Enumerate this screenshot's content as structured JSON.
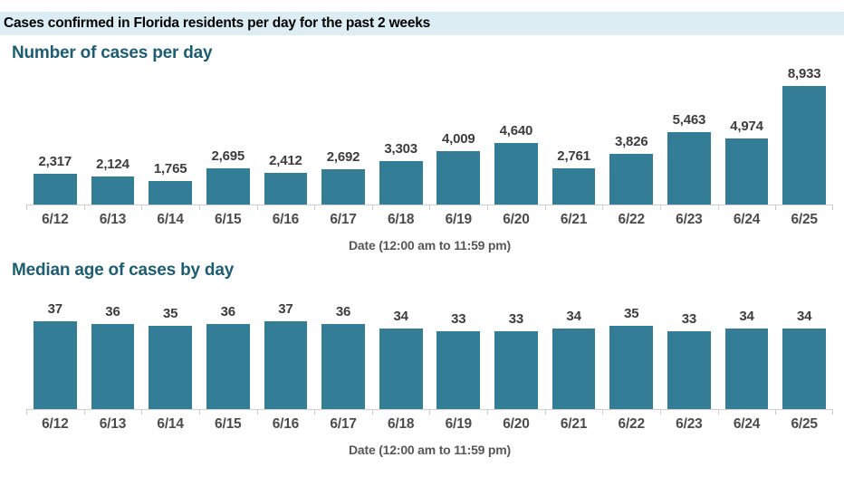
{
  "header": {
    "title": "Cases confirmed in Florida residents per day for the past 2 weeks"
  },
  "colors": {
    "band_bg": "#dcedf4",
    "title_color": "#000000",
    "heading_color": "#1c5d73",
    "bar_color": "#337e96",
    "value_label_color": "#3d3d3d",
    "x_label_color": "#4c4c4c",
    "caption_color": "#575757",
    "axis_line_color": "#cfcfcf",
    "tick_color": "#c9c9c9"
  },
  "chart_data": [
    {
      "type": "bar",
      "title": "Number of cases per day",
      "categories": [
        "6/12",
        "6/13",
        "6/14",
        "6/15",
        "6/16",
        "6/17",
        "6/18",
        "6/19",
        "6/20",
        "6/21",
        "6/22",
        "6/23",
        "6/24",
        "6/25"
      ],
      "values": [
        2317,
        2124,
        1765,
        2695,
        2412,
        2692,
        3303,
        4009,
        4640,
        2761,
        3826,
        5463,
        4974,
        8933
      ],
      "value_labels": [
        "2,317",
        "2,124",
        "1,765",
        "2,695",
        "2,412",
        "2,692",
        "3,303",
        "4,009",
        "4,640",
        "2,761",
        "3,826",
        "5,463",
        "4,974",
        "8,933"
      ],
      "xlabel": "Date (12:00 am to 11:59 pm)",
      "ylabel": "",
      "ylim": [
        0,
        8933
      ],
      "grid": false,
      "data_labels": true,
      "legend": "none"
    },
    {
      "type": "bar",
      "title": "Median age of cases by day",
      "categories": [
        "6/12",
        "6/13",
        "6/14",
        "6/15",
        "6/16",
        "6/17",
        "6/18",
        "6/19",
        "6/20",
        "6/21",
        "6/22",
        "6/23",
        "6/24",
        "6/25"
      ],
      "values": [
        37,
        36,
        35,
        36,
        37,
        36,
        34,
        33,
        33,
        34,
        35,
        33,
        34,
        34
      ],
      "value_labels": [
        "37",
        "36",
        "35",
        "36",
        "37",
        "36",
        "34",
        "33",
        "33",
        "34",
        "35",
        "33",
        "34",
        "34"
      ],
      "xlabel": "Date (12:00 am to 11:59 pm)",
      "ylabel": "",
      "ylim": [
        0,
        37
      ],
      "grid": false,
      "data_labels": true,
      "legend": "none"
    }
  ]
}
